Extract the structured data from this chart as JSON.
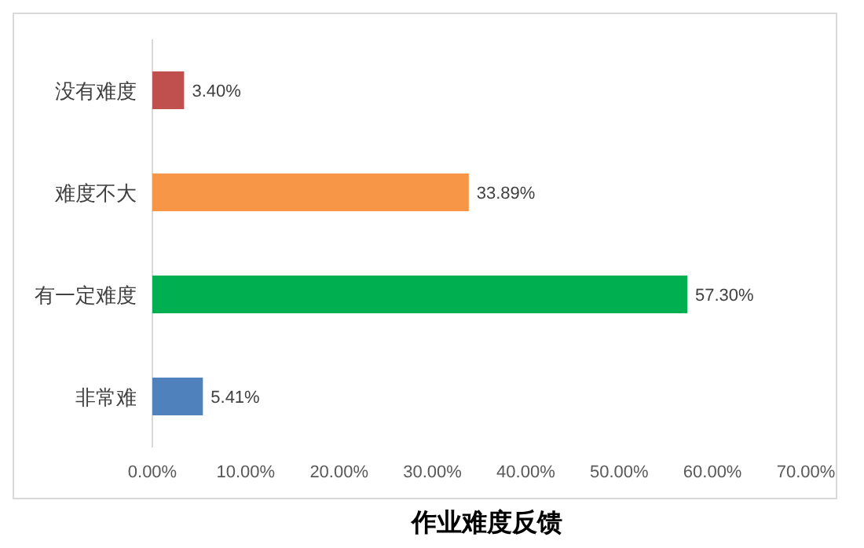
{
  "chart_data": {
    "type": "bar",
    "orientation": "horizontal",
    "title": "作业难度反馈",
    "categories": [
      "没有难度",
      "难度不大",
      "有一定难度",
      "非常难"
    ],
    "values": [
      3.4,
      33.89,
      57.3,
      5.41
    ],
    "colors": [
      "#c0504d",
      "#f79646",
      "#00b050",
      "#4f81bd"
    ],
    "value_labels": [
      "3.40%",
      "33.89%",
      "57.30%",
      "5.41%"
    ],
    "xlim": [
      0,
      70
    ],
    "xticks": [
      {
        "value": 0,
        "label": "0.00%"
      },
      {
        "value": 10,
        "label": "10.00%"
      },
      {
        "value": 20,
        "label": "20.00%"
      },
      {
        "value": 30,
        "label": "30.00%"
      },
      {
        "value": 40,
        "label": "40.00%"
      },
      {
        "value": 50,
        "label": "50.00%"
      },
      {
        "value": 60,
        "label": "60.00%"
      },
      {
        "value": 70,
        "label": "70.00%"
      }
    ],
    "grid": false
  }
}
